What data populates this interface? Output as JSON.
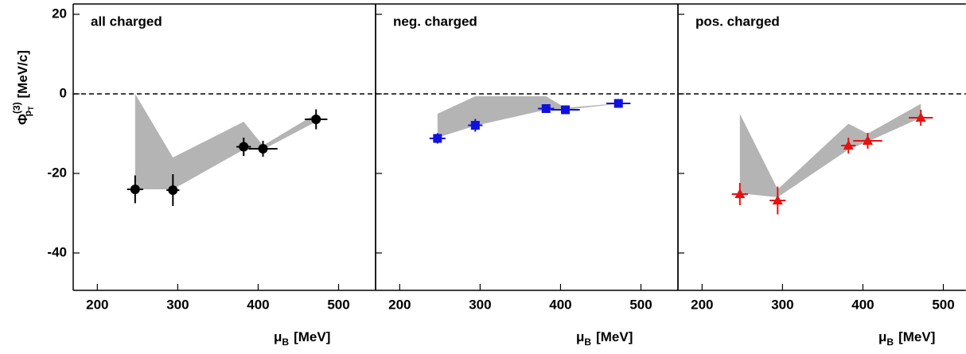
{
  "chart_data": [
    {
      "type": "errorbar",
      "title": "all charged",
      "ylabel": {
        "symbol": "Φ",
        "sup": "(3)",
        "sub": "p",
        "subsub": "T",
        "unit": "[MeV/c]"
      },
      "xlabel": {
        "symbol": "μ",
        "sub": "B",
        "unit": "[MeV]"
      },
      "xlim": [
        170,
        546
      ],
      "ylim": [
        -49.4,
        22.6
      ],
      "xticks": [
        200,
        300,
        400,
        500
      ],
      "yticks": [
        -40,
        -20,
        0,
        20
      ],
      "show_ytick_labels": true,
      "hline": 0,
      "points": {
        "color": "#000000",
        "marker": "circle",
        "x": [
          247,
          294,
          382,
          406,
          472
        ],
        "y": [
          -24,
          -24.2,
          -13.3,
          -13.8,
          -6.4
        ],
        "xerr": [
          10,
          8,
          9,
          18,
          14
        ],
        "yerr": [
          3.5,
          4,
          2.3,
          2,
          2.5
        ]
      },
      "band": {
        "color": "#b4b4b4",
        "x": [
          247,
          294,
          382,
          406,
          472
        ],
        "upper": [
          0,
          -16,
          -7,
          -13,
          -5
        ],
        "lower": [
          -24,
          -24,
          -14,
          -14,
          -7
        ]
      }
    },
    {
      "type": "errorbar",
      "title": "neg. charged",
      "xlabel": {
        "symbol": "μ",
        "sub": "B",
        "unit": "[MeV]"
      },
      "xlim": [
        170,
        546
      ],
      "ylim": [
        -49.4,
        22.6
      ],
      "xticks": [
        200,
        300,
        400,
        500
      ],
      "yticks": [
        -40,
        -20,
        0,
        20
      ],
      "show_ytick_labels": false,
      "hline": 0,
      "points": {
        "color": "#1010e0",
        "marker": "square",
        "x": [
          247,
          294,
          382,
          406,
          472
        ],
        "y": [
          -11.2,
          -7.9,
          -3.7,
          -4,
          -2.4
        ],
        "xerr": [
          10,
          9,
          10,
          18,
          15
        ],
        "yerr": [
          1.3,
          1.6,
          1,
          1,
          0.8
        ]
      },
      "band": {
        "color": "#b4b4b4",
        "x": [
          247,
          294,
          382,
          406,
          472
        ],
        "upper": [
          -5,
          -0.6,
          -0.6,
          -3.5,
          -2.4
        ],
        "lower": [
          -11,
          -8,
          -4,
          -4,
          -2.5
        ]
      }
    },
    {
      "type": "errorbar",
      "title": "pos. charged",
      "xlabel": {
        "symbol": "μ",
        "sub": "B",
        "unit": "[MeV]"
      },
      "xlim": [
        170,
        528
      ],
      "ylim": [
        -49.4,
        22.6
      ],
      "xticks": [
        200,
        300,
        400,
        500
      ],
      "yticks": [
        -40,
        -20,
        0,
        20
      ],
      "show_ytick_labels": false,
      "hline": 0,
      "points": {
        "color": "#e81010",
        "marker": "triangle",
        "x": [
          247,
          294,
          382,
          406,
          472
        ],
        "y": [
          -25.2,
          -26.8,
          -13,
          -11.8,
          -6
        ],
        "xerr": [
          10,
          10,
          9,
          18,
          15
        ],
        "yerr": [
          2.8,
          3.5,
          2,
          2,
          2
        ]
      },
      "band": {
        "color": "#b4b4b4",
        "x": [
          247,
          294,
          382,
          406,
          472
        ],
        "upper": [
          -5,
          -24,
          -7.5,
          -10,
          -2.5
        ],
        "lower": [
          -25,
          -26,
          -14,
          -12,
          -6
        ]
      }
    }
  ]
}
